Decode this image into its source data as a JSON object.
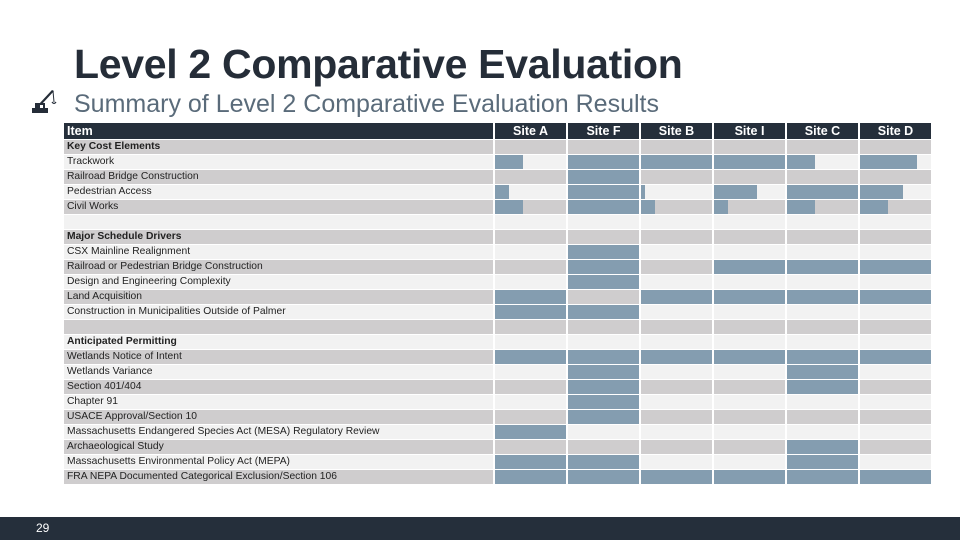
{
  "header": {
    "title": "Level 2 Comparative Evaluation",
    "subtitle": "Summary of Level 2 Comparative Evaluation Results",
    "icon": "crane-icon"
  },
  "colors": {
    "header_bg": "#252f3b",
    "bar": "#849db0",
    "row_gray": "#cfcdce",
    "row_light": "#f2f2f2"
  },
  "table": {
    "item_header": "Item",
    "sites": [
      "Site A",
      "Site F",
      "Site B",
      "Site I",
      "Site C",
      "Site D"
    ],
    "rows": [
      {
        "label": "Key Cost Elements",
        "section": true,
        "values": [
          0,
          0,
          0,
          0,
          0,
          0
        ]
      },
      {
        "label": "Trackwork",
        "values": [
          0.4,
          1,
          1,
          1,
          0.4,
          0.8
        ]
      },
      {
        "label": "Railroad Bridge Construction",
        "values": [
          0,
          1,
          0,
          0,
          0,
          0
        ]
      },
      {
        "label": "Pedestrian Access",
        "values": [
          0.2,
          1,
          0.05,
          0.6,
          1,
          0.6
        ]
      },
      {
        "label": "Civil Works",
        "values": [
          0.4,
          1,
          0.2,
          0.2,
          0.4,
          0.4
        ]
      },
      {
        "label": "",
        "values": [
          0,
          0,
          0,
          0,
          0,
          0
        ]
      },
      {
        "label": "Major Schedule Drivers",
        "section": true,
        "values": [
          0,
          0,
          0,
          0,
          0,
          0
        ]
      },
      {
        "label": "CSX Mainline Realignment",
        "values": [
          0,
          1,
          0,
          0,
          0,
          0
        ]
      },
      {
        "label": "Railroad or Pedestrian Bridge Construction",
        "values": [
          0,
          1,
          0,
          1,
          1,
          1
        ]
      },
      {
        "label": "Design and Engineering Complexity",
        "values": [
          0,
          1,
          0,
          0,
          0,
          0
        ]
      },
      {
        "label": "Land Acquisition",
        "values": [
          1,
          0,
          1,
          1,
          1,
          1
        ]
      },
      {
        "label": "Construction in Municipalities Outside of Palmer",
        "values": [
          1,
          1,
          0,
          0,
          0,
          0
        ]
      },
      {
        "label": "",
        "values": [
          0,
          0,
          0,
          0,
          0,
          0
        ]
      },
      {
        "label": "Anticipated Permitting",
        "section": true,
        "values": [
          0,
          0,
          0,
          0,
          0,
          0
        ]
      },
      {
        "label": "Wetlands Notice of Intent",
        "values": [
          1,
          1,
          1,
          1,
          1,
          1
        ]
      },
      {
        "label": "Wetlands Variance",
        "values": [
          0,
          1,
          0,
          0,
          1,
          0
        ]
      },
      {
        "label": "Section 401/404",
        "values": [
          0,
          1,
          0,
          0,
          1,
          0
        ]
      },
      {
        "label": "Chapter 91",
        "values": [
          0,
          1,
          0,
          0,
          0,
          0
        ]
      },
      {
        "label": "USACE Approval/Section 10",
        "values": [
          0,
          1,
          0,
          0,
          0,
          0
        ]
      },
      {
        "label": "Massachusetts Endangered Species Act (MESA) Regulatory Review",
        "values": [
          1,
          0,
          0,
          0,
          0,
          0
        ]
      },
      {
        "label": "Archaeological Study",
        "values": [
          0,
          0,
          0,
          0,
          1,
          0
        ]
      },
      {
        "label": "Massachusetts Environmental Policy Act (MEPA)",
        "values": [
          1,
          1,
          0,
          0,
          1,
          0
        ]
      },
      {
        "label": "FRA NEPA Documented Categorical Exclusion/Section 106",
        "values": [
          1,
          1,
          1,
          1,
          1,
          1
        ]
      }
    ]
  },
  "footer": {
    "page_number": "29"
  }
}
